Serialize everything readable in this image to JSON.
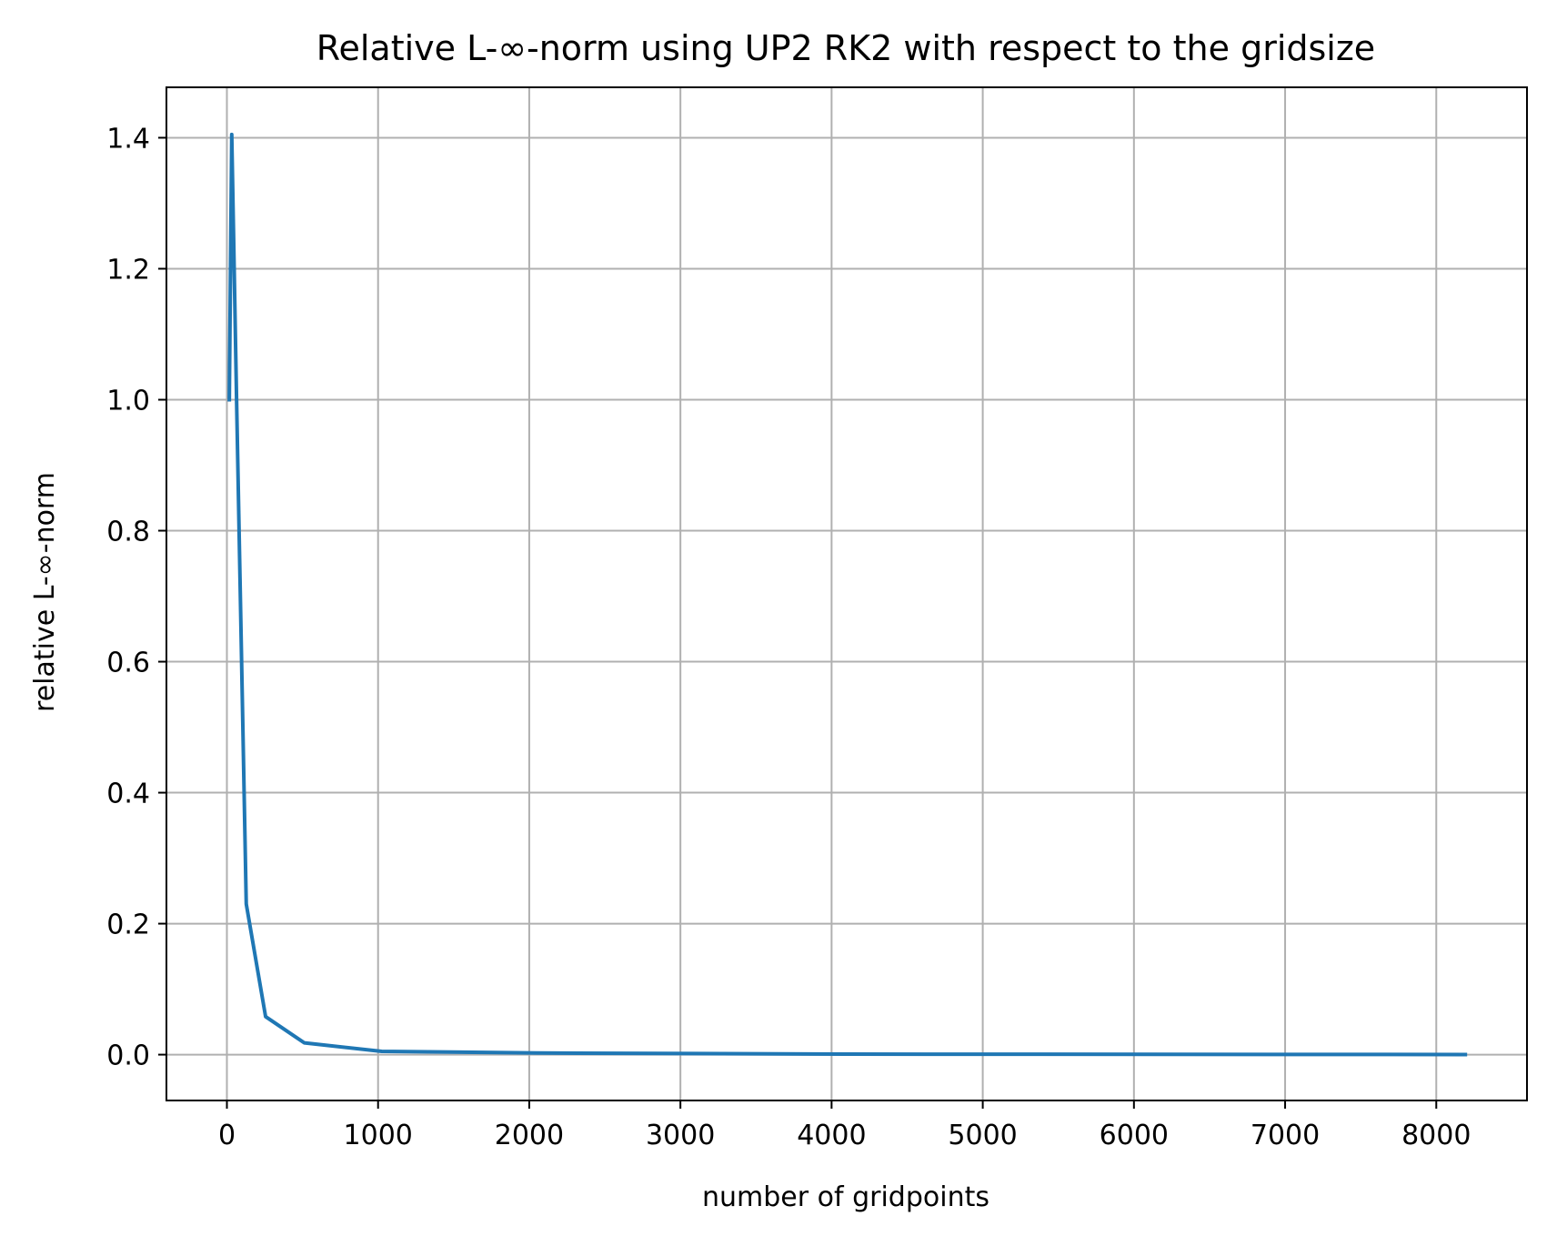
{
  "chart_data": {
    "type": "line",
    "title": "Relative L-∞-norm using UP2 RK2 with respect to the gridsize",
    "xlabel": "number of gridpoints",
    "ylabel": "relative L-∞-norm",
    "xlim": [
      -400,
      8600
    ],
    "ylim": [
      -0.07,
      1.477
    ],
    "xticks": [
      0,
      1000,
      2000,
      3000,
      4000,
      5000,
      6000,
      7000,
      8000
    ],
    "yticks": [
      0.0,
      0.2,
      0.4,
      0.6,
      0.8,
      1.0,
      1.2,
      1.4
    ],
    "ytick_labels": [
      "0.0",
      "0.2",
      "0.4",
      "0.6",
      "0.8",
      "1.0",
      "1.2",
      "1.4"
    ],
    "grid": true,
    "series": [
      {
        "color": "#1f77b4",
        "x": [
          16,
          32,
          64,
          128,
          256,
          512,
          1024,
          2048,
          4096,
          8192
        ],
        "y": [
          1.0,
          1.405,
          1.0,
          0.23,
          0.058,
          0.018,
          0.005,
          0.0025,
          0.0008,
          0.0002
        ]
      }
    ]
  }
}
